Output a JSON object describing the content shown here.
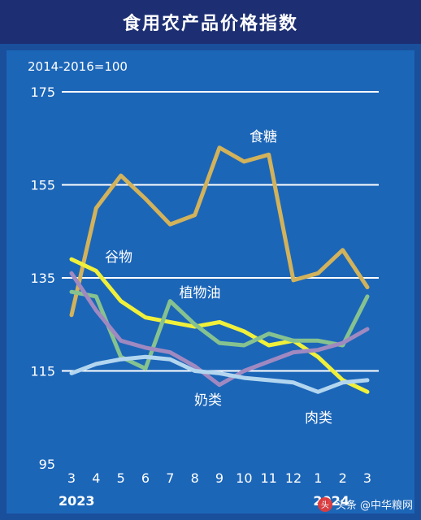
{
  "title": "食用农产品价格指数",
  "watermark": {
    "text": "头条 @中华粮网"
  },
  "chart_data": {
    "type": "line",
    "unit_note": "2014-2016=100",
    "x": [
      "3",
      "4",
      "5",
      "6",
      "7",
      "8",
      "9",
      "10",
      "11",
      "12",
      "1",
      "2",
      "3"
    ],
    "year_labels": [
      {
        "text": "2023",
        "at": "3"
      },
      {
        "text": "2024",
        "at": "1"
      }
    ],
    "ylim": [
      95,
      175
    ],
    "yticks": [
      95,
      115,
      135,
      155,
      175
    ],
    "grid": true,
    "series": [
      {
        "name": "食糖",
        "color": "#d2b25a",
        "values": [
          127,
          150,
          157,
          152,
          146.5,
          148.5,
          163,
          160,
          161.5,
          134.5,
          136,
          141,
          133
        ]
      },
      {
        "name": "谷物",
        "color": "#f0f03a",
        "values": [
          139,
          136.5,
          130,
          126.5,
          125.5,
          124.5,
          125.5,
          123.5,
          120.5,
          121.5,
          118,
          113,
          110.5
        ]
      },
      {
        "name": "植物油",
        "color": "#86c28f",
        "values": [
          132,
          131,
          118,
          115.5,
          130,
          125,
          121,
          120.5,
          123,
          121.5,
          121.5,
          120.5,
          131
        ]
      },
      {
        "name": "奶类",
        "color": "#a089c0",
        "values": [
          136,
          128,
          121.5,
          120,
          119,
          116,
          112,
          115,
          117,
          119,
          119.5,
          121,
          124
        ]
      },
      {
        "name": "肉类",
        "color": "#b3d6ef",
        "values": [
          114.5,
          116.5,
          117.5,
          118,
          117.5,
          115,
          114.5,
          113.5,
          113,
          112.5,
          110.5,
          112.5,
          113
        ]
      }
    ]
  }
}
